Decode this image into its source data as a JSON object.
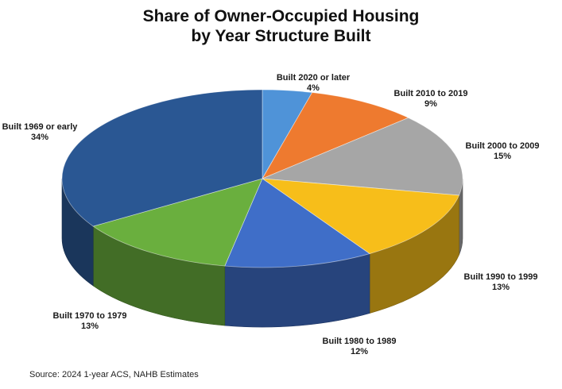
{
  "title_line1": "Share of Owner-Occupied Housing",
  "title_line2": "by Year Structure Built",
  "source": "Source: 2024 1-year ACS, NAHB Estimates",
  "chart_data": {
    "type": "pie",
    "style": "3d",
    "slices": [
      {
        "label": "Built 2020 or later",
        "value": 4,
        "value_label": "4%",
        "color": "#4F93D8"
      },
      {
        "label": "Built 2010 to 2019",
        "value": 9,
        "value_label": "9%",
        "color": "#EE7A2F"
      },
      {
        "label": "Built 2000 to 2009",
        "value": 15,
        "value_label": "15%",
        "color": "#A6A6A6"
      },
      {
        "label": "Built 1990 to 1999",
        "value": 13,
        "value_label": "13%",
        "color": "#F7BE1A"
      },
      {
        "label": "Built 1980 to 1989",
        "value": 12,
        "value_label": "12%",
        "color": "#3F6EC8"
      },
      {
        "label": "Built 1970 to 1979",
        "value": 13,
        "value_label": "13%",
        "color": "#6AAF3E"
      },
      {
        "label": "Built 1969 or early",
        "value": 34,
        "value_label": "34%",
        "color": "#2A5793"
      }
    ]
  }
}
